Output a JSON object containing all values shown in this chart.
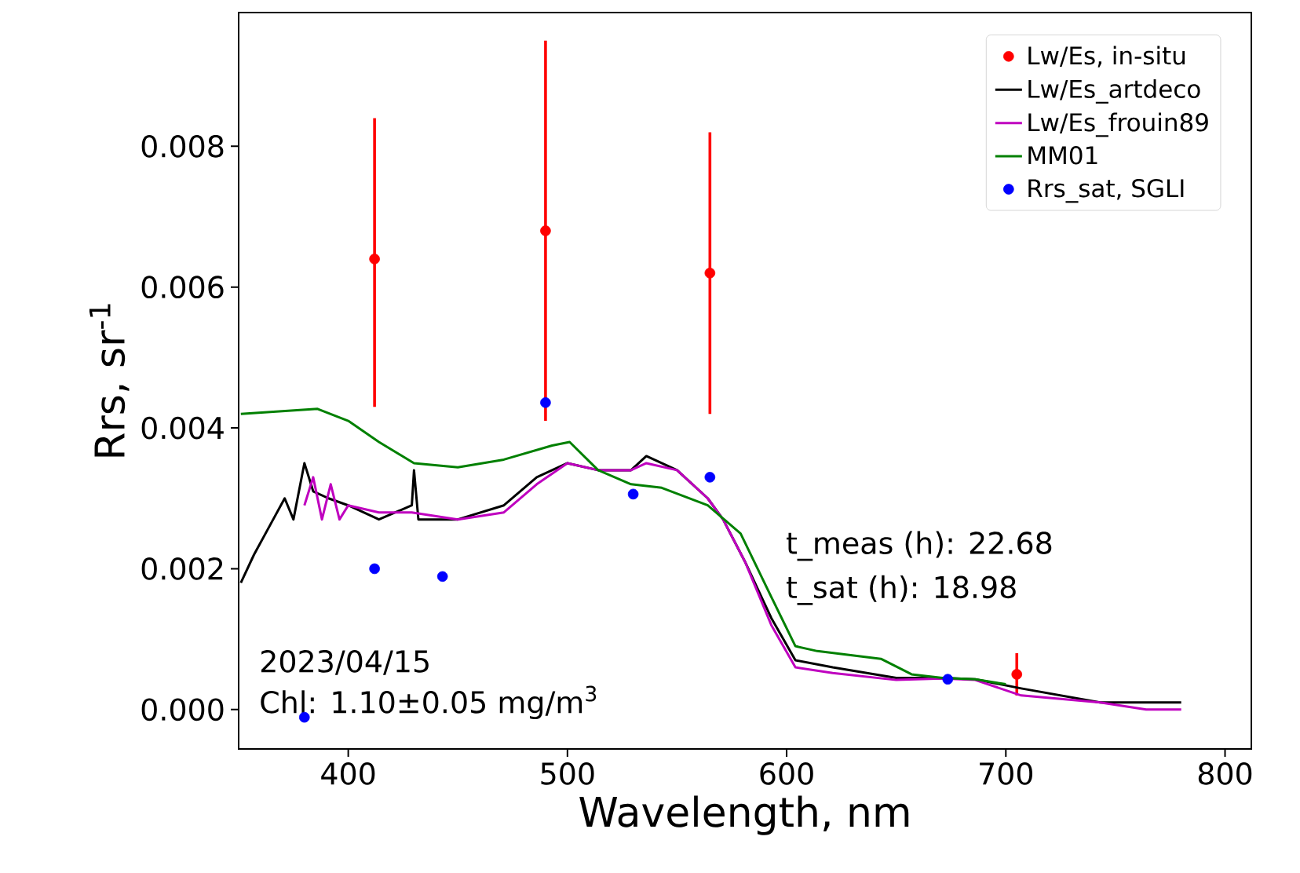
{
  "chart_data": {
    "type": "line",
    "xlabel": "Wavelength, nm",
    "ylabel": "Rrs, sr$^{-1}$",
    "xlim": [
      350,
      812
    ],
    "ylim": [
      -0.00056,
      0.0099
    ],
    "xticks": [
      400,
      500,
      600,
      700,
      800
    ],
    "yticks": [
      {
        "value": 0,
        "label": "0.000"
      },
      {
        "value": 0.002,
        "label": "0.002"
      },
      {
        "value": 0.004,
        "label": "0.004"
      },
      {
        "value": 0.006,
        "label": "0.006"
      },
      {
        "value": 0.008,
        "label": "0.008"
      }
    ],
    "legend": "top right",
    "annotations": [
      "2023/04/15",
      "Chl: 1.10±0.05 mg/m$^{3}$",
      "t_meas (h): 22.68",
      "t_sat (h): 18.98"
    ],
    "series": [
      {
        "name": "Lw/Es, in-situ",
        "type": "scatter",
        "color": "#ff0000",
        "x": [
          412,
          490,
          565,
          705
        ],
        "values": [
          0.0064,
          0.0068,
          0.0062,
          0.0005
        ],
        "errors": [
          [
            0.0043,
            0.0084
          ],
          [
            0.0041,
            0.0095
          ],
          [
            0.0042,
            0.0082
          ],
          [
            0.0002,
            0.0008
          ]
        ]
      },
      {
        "name": "Lw/Es_artdeco",
        "color": "#000000",
        "x": [
          351,
          357,
          364,
          371,
          375,
          380,
          384,
          391,
          400,
          414,
          429,
          430,
          432,
          450,
          471,
          486,
          500,
          514,
          529,
          536,
          550,
          564,
          571,
          581,
          593,
          604,
          621,
          650,
          671,
          686,
          707,
          743,
          764,
          780
        ],
        "values": [
          0.0018,
          0.0022,
          0.0026,
          0.003,
          0.0027,
          0.0035,
          0.0031,
          0.003,
          0.0029,
          0.0027,
          0.0029,
          0.0034,
          0.0027,
          0.0027,
          0.0029,
          0.0033,
          0.0035,
          0.0034,
          0.0034,
          0.0036,
          0.0034,
          0.003,
          0.0027,
          0.0021,
          0.0013,
          0.0007,
          0.0006,
          0.00045,
          0.00045,
          0.00043,
          0.0003,
          0.0001,
          0.0001,
          0.0001
        ]
      },
      {
        "name": "Lw/Es_frouin89",
        "color": "#bf00bf",
        "x": [
          380,
          384,
          388,
          392,
          396,
          400,
          414,
          429,
          450,
          471,
          486,
          500,
          514,
          529,
          536,
          550,
          564,
          571,
          581,
          593,
          604,
          621,
          650,
          671,
          686,
          707,
          743,
          764,
          780
        ],
        "values": [
          0.0029,
          0.0033,
          0.0027,
          0.0032,
          0.0027,
          0.0029,
          0.0028,
          0.0028,
          0.0027,
          0.0028,
          0.0032,
          0.0035,
          0.0034,
          0.0034,
          0.0035,
          0.0034,
          0.003,
          0.0027,
          0.0021,
          0.0012,
          0.0006,
          0.00052,
          0.00042,
          0.00044,
          0.00042,
          0.0002,
          0.0001,
          0.0,
          0.0
        ]
      },
      {
        "name": "MM01",
        "color": "#008000",
        "x": [
          351,
          386,
          400,
          414,
          430,
          450,
          471,
          493,
          501,
          514,
          529,
          543,
          564,
          579,
          593,
          604,
          614,
          643,
          657,
          671,
          686,
          700
        ],
        "values": [
          0.0042,
          0.00427,
          0.0041,
          0.0038,
          0.0035,
          0.00344,
          0.00355,
          0.00375,
          0.0038,
          0.0034,
          0.0032,
          0.00315,
          0.0029,
          0.0025,
          0.0016,
          0.0009,
          0.00083,
          0.00072,
          0.0005,
          0.00045,
          0.00043,
          0.00036
        ]
      },
      {
        "name": "Rrs_sat, SGLI",
        "type": "scatter",
        "color": "#0000ff",
        "x": [
          380,
          412,
          443,
          490,
          530,
          565,
          673.5
        ],
        "values": [
          -0.00011,
          0.002,
          0.00189,
          0.00436,
          0.00306,
          0.0033,
          0.00043
        ]
      }
    ]
  }
}
